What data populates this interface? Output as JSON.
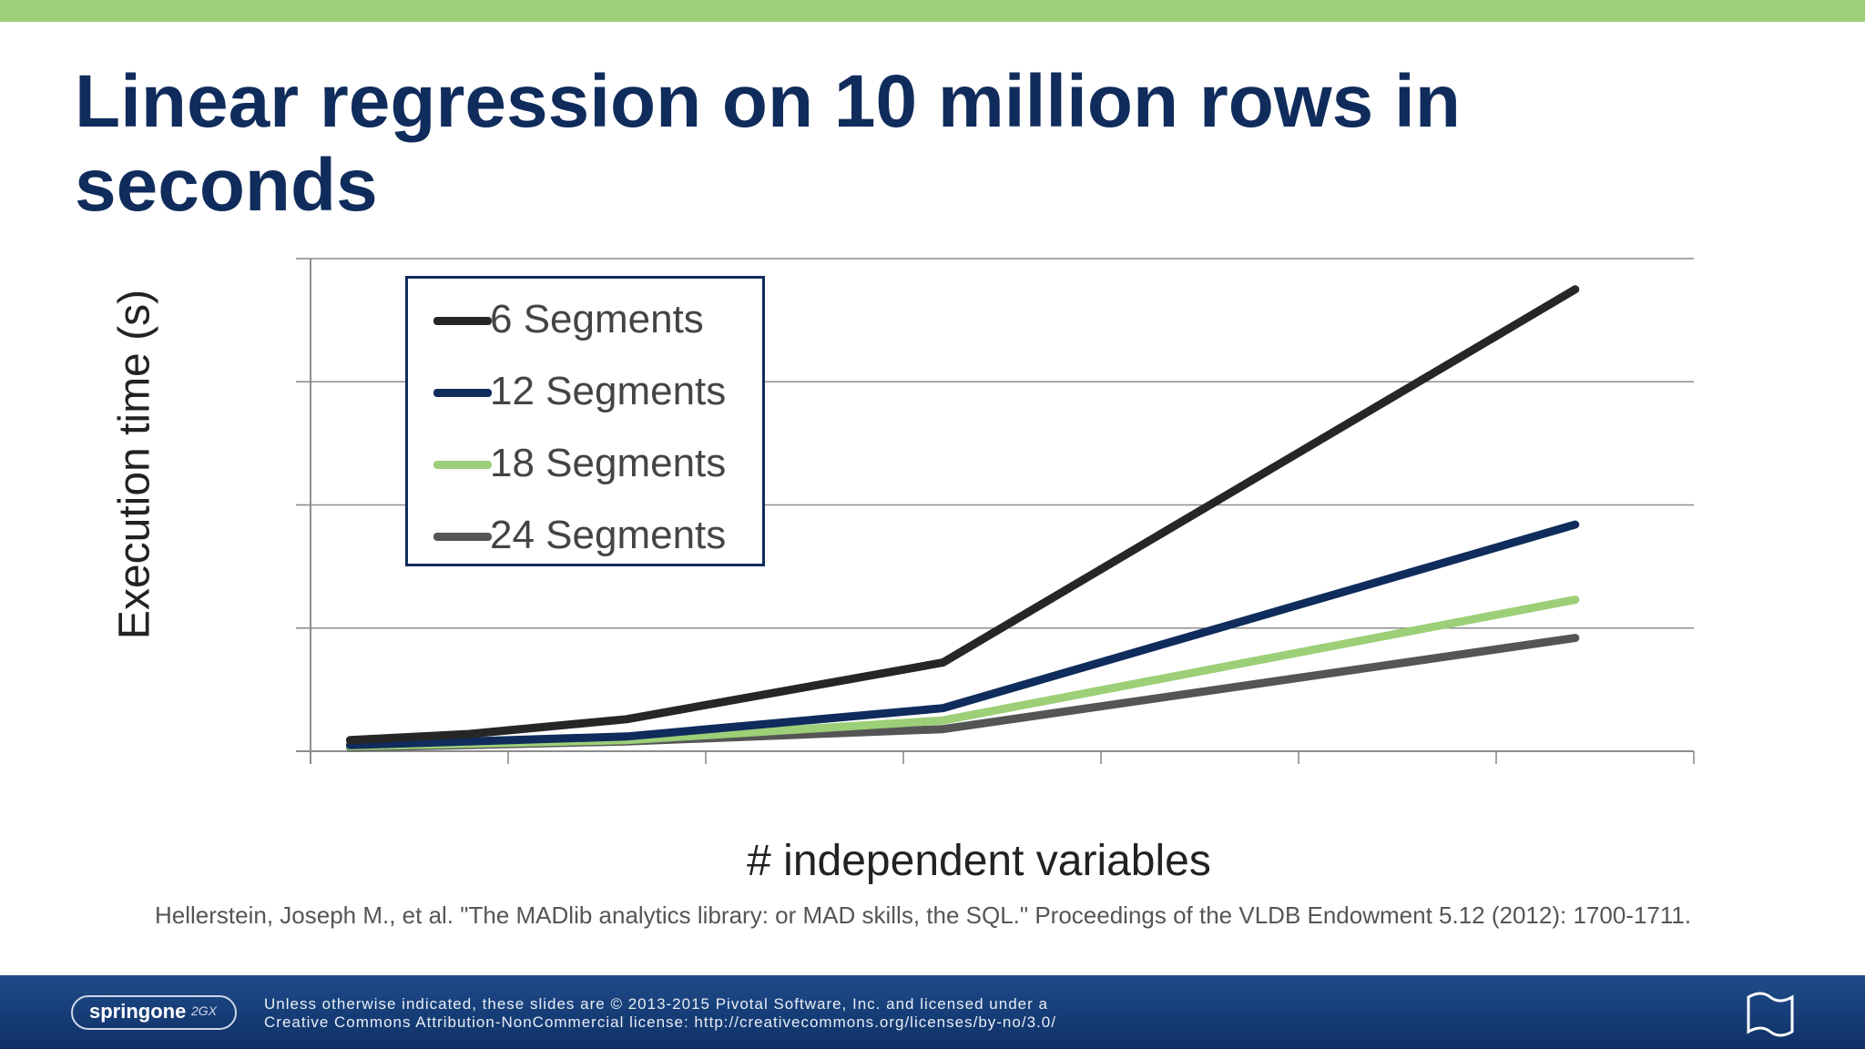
{
  "slide": {
    "title": "Linear regression on 10 million rows in seconds",
    "citation": "Hellerstein, Joseph M., et al. \"The MADlib analytics library: or MAD skills, the SQL.\" Proceedings of the VLDB Endowment 5.12 (2012): 1700-1711."
  },
  "footer": {
    "logo_text": "springone",
    "logo_sub": "2GX",
    "license_line1": "Unless otherwise indicated, these slides are © 2013-2015 Pivotal Software, Inc. and licensed under a",
    "license_line2": "Creative Commons Attribution-NonCommercial license: http://creativecommons.org/licenses/by-no/3.0/"
  },
  "colors": {
    "title": "#102c5c",
    "accent_bar": "#9ccf78",
    "footer_bg": "#1a3f78"
  },
  "chart_data": {
    "type": "line",
    "xlabel": "# independent variables",
    "ylabel": "Execution time (s)",
    "x": [
      0.2,
      0.8,
      1.6,
      3.2,
      6.4
    ],
    "xlim": [
      0,
      7
    ],
    "ylim": [
      0,
      4
    ],
    "x_ticks": 7,
    "y_ticks": 4,
    "grid": "horizontal",
    "legend_position": "top-left",
    "series": [
      {
        "name": "6 Segments",
        "color": "#262626",
        "values": [
          0.09,
          0.14,
          0.26,
          0.72,
          3.75
        ]
      },
      {
        "name": "12 Segments",
        "color": "#102c5c",
        "values": [
          0.05,
          0.08,
          0.12,
          0.35,
          1.84
        ]
      },
      {
        "name": "18 Segments",
        "color": "#9ccf78",
        "values": [
          0.04,
          0.06,
          0.09,
          0.25,
          1.23
        ]
      },
      {
        "name": "24 Segments",
        "color": "#555555",
        "values": [
          0.03,
          0.05,
          0.08,
          0.18,
          0.92
        ]
      }
    ]
  }
}
